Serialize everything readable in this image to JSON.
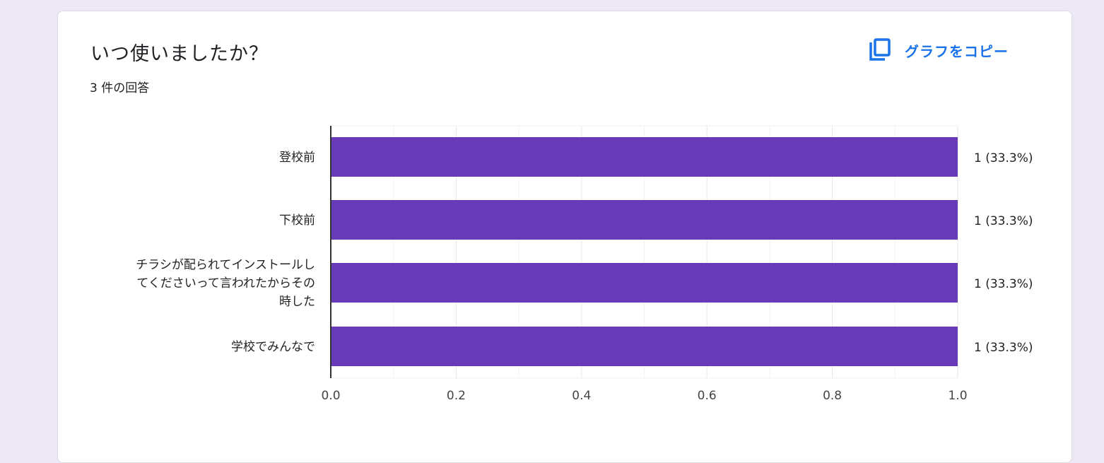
{
  "question": {
    "title": "いつ使いましたか？",
    "response_count": "3 件の回答"
  },
  "toolbar": {
    "copy_chart_label": "グラフをコピー",
    "copy_icon": "copy-icon"
  },
  "colors": {
    "bar": "#673ab7",
    "accent": "#1a73e8",
    "page_background": "#ede7f6"
  },
  "chart_data": {
    "type": "bar",
    "orientation": "horizontal",
    "categories": [
      "登校前",
      "下校前",
      "チラシが配られてインストールしてくださいって言われたからその時した",
      "学校でみんなで"
    ],
    "category_lines": [
      [
        "登校前"
      ],
      [
        "下校前"
      ],
      [
        "チラシが配られてインストールし",
        "てくださいって言われたからその",
        "時した"
      ],
      [
        "学校でみんなで"
      ]
    ],
    "values": [
      1,
      1,
      1,
      1
    ],
    "value_labels": [
      "1 (33.3%)",
      "1 (33.3%)",
      "1 (33.3%)",
      "1 (33.3%)"
    ],
    "x_ticks": [
      "0.0",
      "0.2",
      "0.4",
      "0.6",
      "0.8",
      "1.0"
    ],
    "xlim": [
      0,
      1
    ],
    "grid": true,
    "legend": "none"
  }
}
